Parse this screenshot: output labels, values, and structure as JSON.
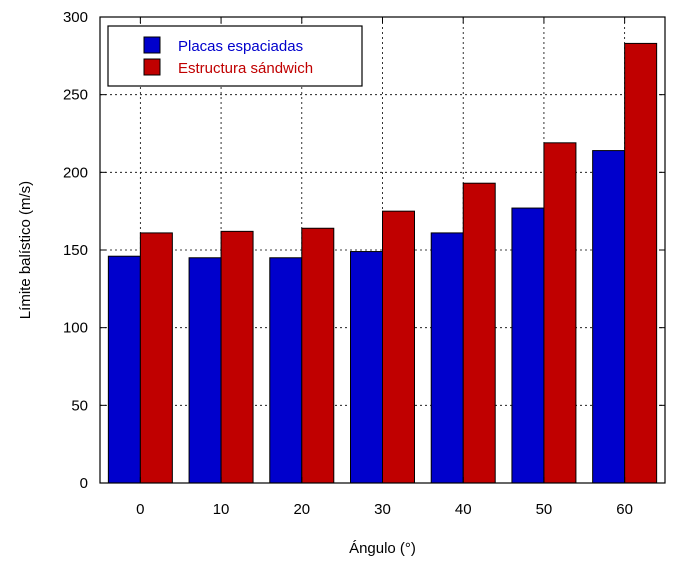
{
  "chart_data": {
    "type": "bar",
    "title": "",
    "xlabel": "Ángulo (°)",
    "ylabel": "Límite balístico (m/s)",
    "ylim": [
      0,
      300
    ],
    "yticks": [
      0,
      50,
      100,
      150,
      200,
      250,
      300
    ],
    "categories": [
      "0",
      "10",
      "20",
      "30",
      "40",
      "50",
      "60"
    ],
    "series": [
      {
        "name": "Placas espaciadas",
        "color": "#0000cc",
        "values": [
          146,
          145,
          145,
          149,
          161,
          177,
          214
        ]
      },
      {
        "name": "Estructura sándwich",
        "color": "#c00000",
        "values": [
          161,
          162,
          164,
          175,
          193,
          219,
          283
        ]
      }
    ],
    "grid": true,
    "legend_position": "top-left"
  }
}
